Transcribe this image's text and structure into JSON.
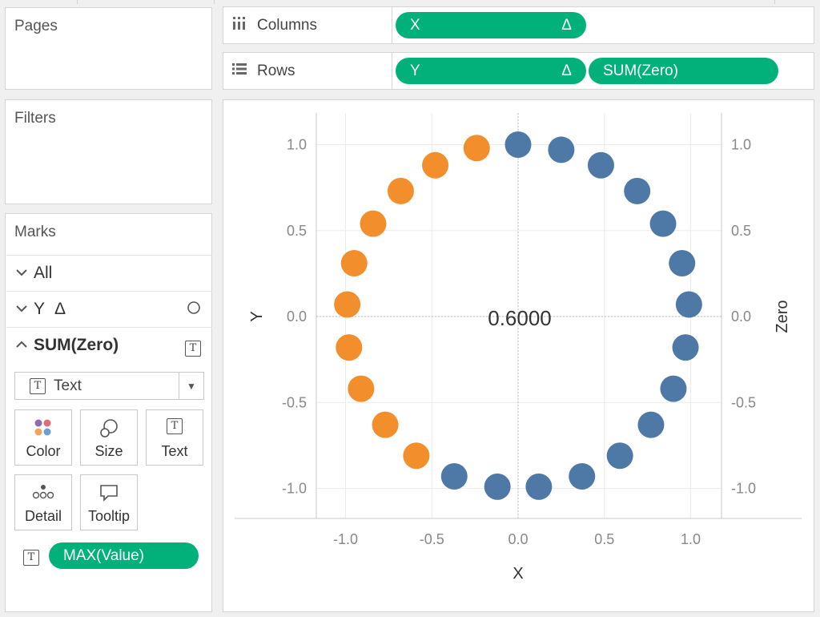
{
  "pages_panel": {
    "title": "Pages"
  },
  "filters_panel": {
    "title": "Filters"
  },
  "columns_shelf": {
    "label": "Columns",
    "icon": "columns-icon",
    "pills": [
      {
        "label": "X",
        "delta": "Δ"
      }
    ]
  },
  "rows_shelf": {
    "label": "Rows",
    "icon": "rows-icon",
    "pills": [
      {
        "label": "Y",
        "delta": "Δ"
      },
      {
        "label": "SUM(Zero)"
      }
    ]
  },
  "marks": {
    "title": "Marks",
    "cards": [
      {
        "label": "All",
        "expanded": false
      },
      {
        "label": "Y",
        "delta": "Δ",
        "mark_icon": "circle-icon",
        "expanded": false
      },
      {
        "label": "SUM(Zero)",
        "mark_icon": "text-icon",
        "expanded": true
      }
    ],
    "mark_type": "Text",
    "buttons": [
      {
        "label": "Color"
      },
      {
        "label": "Size"
      },
      {
        "label": "Text"
      },
      {
        "label": "Detail"
      },
      {
        "label": "Tooltip"
      }
    ],
    "field": {
      "label": "MAX(Value)",
      "icon": "text-icon"
    }
  },
  "colors": {
    "pill_green": "#02b17a",
    "orange": "#f28e2b",
    "blue": "#4e79a7"
  },
  "chart_data": {
    "type": "scatter",
    "xlabel": "X",
    "ylabel": "Y",
    "y2label": "Zero",
    "xlim": [
      -1.2,
      1.2
    ],
    "ylim": [
      -1.2,
      1.2
    ],
    "xticks": [
      "-1.0",
      "-0.5",
      "0.0",
      "0.5",
      "1.0"
    ],
    "yticks": [
      "1.0",
      "0.5",
      "0.0",
      "-0.5",
      "-1.0"
    ],
    "y2ticks": [
      "1.0",
      "0.5",
      "0.0",
      "-0.5",
      "-1.0"
    ],
    "center_label": "0.6000",
    "grid": true,
    "series": [
      {
        "color": "#f28e2b",
        "points": [
          [
            -0.24,
            0.98
          ],
          [
            -0.48,
            0.88
          ],
          [
            -0.68,
            0.73
          ],
          [
            -0.84,
            0.54
          ],
          [
            -0.95,
            0.31
          ],
          [
            -0.99,
            0.07
          ],
          [
            -0.98,
            -0.18
          ],
          [
            -0.91,
            -0.42
          ],
          [
            -0.77,
            -0.63
          ],
          [
            -0.59,
            -0.81
          ]
        ]
      },
      {
        "color": "#4e79a7",
        "points": [
          [
            0.0,
            1.0
          ],
          [
            0.25,
            0.97
          ],
          [
            0.48,
            0.88
          ],
          [
            0.69,
            0.73
          ],
          [
            0.84,
            0.54
          ],
          [
            0.95,
            0.31
          ],
          [
            0.99,
            0.07
          ],
          [
            0.97,
            -0.18
          ],
          [
            0.9,
            -0.42
          ],
          [
            0.77,
            -0.63
          ],
          [
            0.59,
            -0.81
          ],
          [
            0.37,
            -0.93
          ],
          [
            0.12,
            -0.99
          ],
          [
            -0.12,
            -0.99
          ],
          [
            -0.37,
            -0.93
          ]
        ]
      }
    ]
  }
}
